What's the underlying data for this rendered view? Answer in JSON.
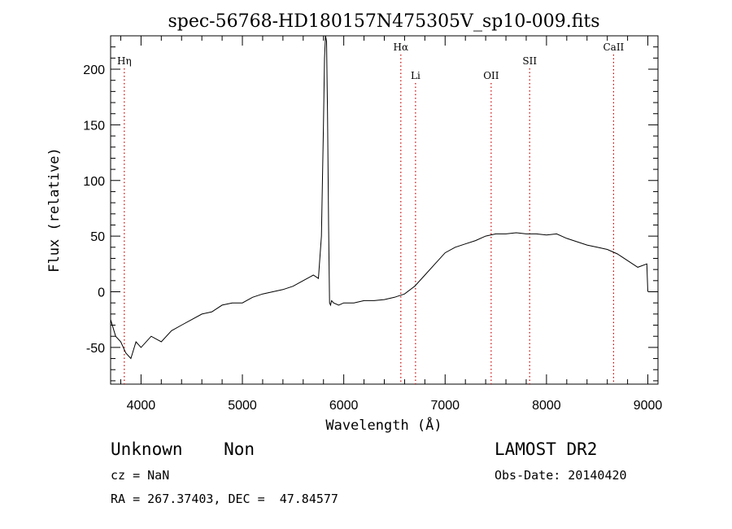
{
  "chart_data": {
    "type": "line",
    "title": "spec-56768-HD180157N475305V_sp10-009.fits",
    "xlabel": "Wavelength (Å)",
    "ylabel": "Flux (relative)",
    "xlim": [
      3700,
      9100
    ],
    "ylim": [
      -83,
      230
    ],
    "x_ticks": [
      4000,
      5000,
      6000,
      7000,
      8000,
      9000
    ],
    "y_ticks": [
      -50,
      0,
      50,
      100,
      150,
      200
    ],
    "grid": false,
    "line_color": "#000000",
    "marker_color": "#cc0000",
    "series": [
      {
        "x": [
          3700,
          3750,
          3800,
          3850,
          3900,
          3950,
          4000,
          4100,
          4200,
          4300,
          4400,
          4500,
          4600,
          4700,
          4800,
          4900,
          5000,
          5100,
          5200,
          5300,
          5400,
          5500,
          5600,
          5700,
          5750,
          5780,
          5800,
          5810,
          5820,
          5830,
          5840,
          5850,
          5860,
          5870,
          5880,
          5900,
          5950,
          6000,
          6100,
          6200,
          6300,
          6400,
          6500,
          6600,
          6700,
          6800,
          6900,
          7000,
          7100,
          7200,
          7300,
          7400,
          7500,
          7600,
          7700,
          7800,
          7900,
          8000,
          8100,
          8200,
          8300,
          8400,
          8500,
          8600,
          8700,
          8800,
          8900,
          8990,
          9000
        ],
        "y": [
          -25,
          -40,
          -45,
          -55,
          -60,
          -45,
          -50,
          -40,
          -45,
          -35,
          -30,
          -25,
          -20,
          -18,
          -12,
          -10,
          -10,
          -5,
          -2,
          0,
          2,
          5,
          10,
          15,
          12,
          50,
          150,
          210,
          230,
          225,
          160,
          60,
          -10,
          -12,
          -8,
          -10,
          -12,
          -10,
          -10,
          -8,
          -8,
          -7,
          -5,
          -2,
          5,
          15,
          25,
          35,
          40,
          43,
          46,
          50,
          52,
          52,
          53,
          52,
          52,
          51,
          52,
          48,
          45,
          42,
          40,
          38,
          34,
          28,
          22,
          25,
          0
        ]
      }
    ],
    "annotations": [
      {
        "label": "Hη",
        "x": 3835
      },
      {
        "label": "Hα",
        "x": 6563
      },
      {
        "label": "Li",
        "x": 6708
      },
      {
        "label": "OII",
        "x": 7454
      },
      {
        "label": "SII",
        "x": 7834
      },
      {
        "label": "CaII",
        "x": 8662
      }
    ]
  },
  "footer": {
    "class_label": "Unknown    Non",
    "cz": "cz = NaN",
    "radec": "RA = 267.37403, DEC =  47.84577",
    "survey": "LAMOST DR2",
    "obs_date": "Obs-Date: 20140420"
  }
}
